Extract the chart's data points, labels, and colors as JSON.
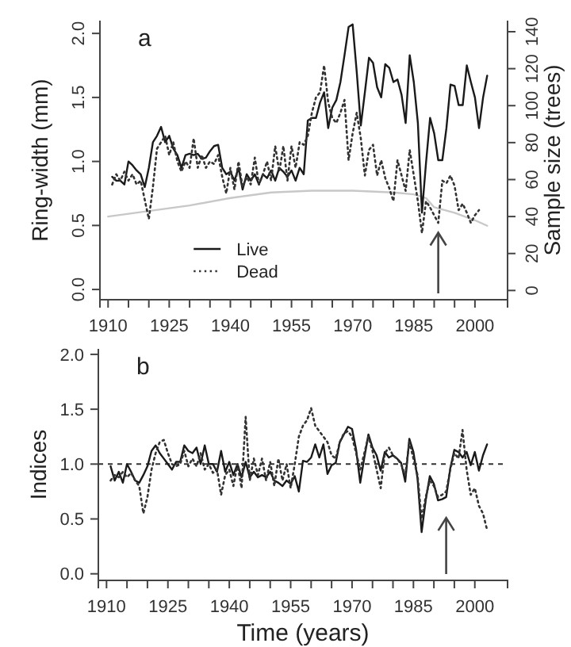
{
  "chart_data": [
    {
      "type": "line",
      "title": "a",
      "ylabel": "Ring-width (mm)",
      "y2label": "Sample size (trees)",
      "x": [
        1911,
        1912,
        1913,
        1914,
        1915,
        1916,
        1917,
        1918,
        1919,
        1920,
        1921,
        1922,
        1923,
        1924,
        1925,
        1926,
        1927,
        1928,
        1929,
        1930,
        1931,
        1932,
        1933,
        1934,
        1935,
        1936,
        1937,
        1938,
        1939,
        1940,
        1941,
        1942,
        1943,
        1944,
        1945,
        1946,
        1947,
        1948,
        1949,
        1950,
        1951,
        1952,
        1953,
        1954,
        1955,
        1956,
        1957,
        1958,
        1959,
        1960,
        1961,
        1962,
        1963,
        1964,
        1965,
        1966,
        1967,
        1968,
        1969,
        1970,
        1971,
        1972,
        1973,
        1974,
        1975,
        1976,
        1977,
        1978,
        1979,
        1980,
        1981,
        1982,
        1983,
        1984,
        1985,
        1986,
        1987,
        1988,
        1989,
        1990,
        1991,
        1992,
        1993,
        1994,
        1995,
        1996,
        1997,
        1998,
        1999,
        2000,
        2001,
        2002,
        2003
      ],
      "series": [
        {
          "name": "Live",
          "color": "#1a1a1a",
          "line_style": "solid",
          "values": [
            0.88,
            0.85,
            0.85,
            0.82,
            1.0,
            0.97,
            0.93,
            0.9,
            0.8,
            0.95,
            1.15,
            1.2,
            1.27,
            1.15,
            1.2,
            1.1,
            1.05,
            0.95,
            1.05,
            1.06,
            1.05,
            1.06,
            1.02,
            1.03,
            1.08,
            1.12,
            1.13,
            0.95,
            0.9,
            0.92,
            0.85,
            0.95,
            0.78,
            0.9,
            0.85,
            0.9,
            0.82,
            0.9,
            0.87,
            0.93,
            0.85,
            0.95,
            0.92,
            0.88,
            0.93,
            0.85,
            0.95,
            0.9,
            1.32,
            1.34,
            1.34,
            1.46,
            1.54,
            1.26,
            1.42,
            1.48,
            1.62,
            1.83,
            2.05,
            2.07,
            1.7,
            1.28,
            1.54,
            1.81,
            1.77,
            1.58,
            1.5,
            1.76,
            1.73,
            1.62,
            1.64,
            1.52,
            1.3,
            1.83,
            1.62,
            1.3,
            0.6,
            0.99,
            1.34,
            1.22,
            1.01,
            1.01,
            1.26,
            1.6,
            1.59,
            1.44,
            1.44,
            1.75,
            1.62,
            1.5,
            1.26,
            1.5,
            1.67
          ]
        },
        {
          "name": "Dead",
          "color": "#333333",
          "line_style": "dotted",
          "values": [
            0.82,
            0.9,
            0.85,
            0.92,
            0.85,
            0.9,
            0.82,
            0.85,
            0.7,
            0.55,
            0.8,
            1.1,
            1.15,
            1.2,
            1.05,
            1.15,
            1.0,
            0.92,
            1.0,
            0.95,
            1.18,
            0.95,
            1.05,
            0.95,
            1.0,
            0.98,
            1.05,
            0.88,
            0.75,
            0.95,
            0.78,
            1.0,
            0.8,
            0.88,
            0.82,
            1.03,
            0.82,
            0.9,
            1.0,
            0.85,
            1.12,
            0.92,
            1.12,
            0.85,
            1.12,
            0.95,
            1.15,
            1.13,
            1.2,
            1.38,
            1.5,
            1.54,
            1.75,
            1.46,
            1.34,
            1.3,
            1.38,
            1.48,
            1.01,
            1.22,
            1.38,
            1.18,
            0.89,
            1.09,
            1.13,
            0.89,
            1.01,
            0.87,
            0.79,
            0.69,
            1.01,
            0.89,
            0.77,
            1.09,
            0.89,
            0.69,
            0.44,
            0.69,
            0.64,
            0.58,
            0.52,
            0.85,
            0.83,
            0.89,
            0.81,
            0.62,
            0.67,
            0.6,
            0.52,
            0.58,
            0.62,
            null,
            null
          ]
        },
        {
          "color": "#c8c8c8",
          "line_style": "solid",
          "axis": "y2",
          "x": [
            1910,
            1920,
            1930,
            1940,
            1950,
            1960,
            1970,
            1980,
            1985,
            1988,
            1990,
            1995,
            2000,
            2003
          ],
          "values": [
            40,
            43,
            46,
            50,
            53,
            54,
            54,
            53,
            52,
            50,
            45,
            42,
            38,
            35
          ]
        }
      ],
      "xlim": [
        1908,
        2008
      ],
      "xticks": [
        1910,
        {
          "value": 1915,
          "label": null
        },
        {
          "value": 1920,
          "label": null
        },
        1925,
        {
          "value": 1930,
          "label": null
        },
        {
          "value": 1935,
          "label": null
        },
        1940,
        {
          "value": 1945,
          "label": null
        },
        {
          "value": 1950,
          "label": null
        },
        1955,
        {
          "value": 1960,
          "label": null
        },
        {
          "value": 1965,
          "label": null
        },
        1970,
        {
          "value": 1975,
          "label": null
        },
        {
          "value": 1980,
          "label": null
        },
        1985,
        {
          "value": 1990,
          "label": null
        },
        {
          "value": 1995,
          "label": null
        },
        2000
      ],
      "ylim": [
        -0.08,
        2.1
      ],
      "yticks": [
        {
          "value": 0,
          "label": "0.0"
        },
        {
          "value": 0.5,
          "label": "0.5"
        },
        {
          "value": 1,
          "label": "1.0"
        },
        {
          "value": 1.5,
          "label": "1.5"
        },
        {
          "value": 2,
          "label": "2.0"
        }
      ],
      "y2lim": [
        -5,
        146
      ],
      "y2ticks": [
        0,
        20,
        40,
        60,
        80,
        100,
        120,
        140
      ],
      "legend": "bottom"
    },
    {
      "type": "line",
      "title": "b",
      "xlabel": "Time (years)",
      "ylabel": "Indices",
      "x": [
        1911,
        1912,
        1913,
        1914,
        1915,
        1916,
        1917,
        1918,
        1919,
        1920,
        1921,
        1922,
        1923,
        1924,
        1925,
        1926,
        1927,
        1928,
        1929,
        1930,
        1931,
        1932,
        1933,
        1934,
        1935,
        1936,
        1937,
        1938,
        1939,
        1940,
        1941,
        1942,
        1943,
        1944,
        1945,
        1946,
        1947,
        1948,
        1949,
        1950,
        1951,
        1952,
        1953,
        1954,
        1955,
        1956,
        1957,
        1958,
        1959,
        1960,
        1961,
        1962,
        1963,
        1964,
        1965,
        1966,
        1967,
        1968,
        1969,
        1970,
        1971,
        1972,
        1973,
        1974,
        1975,
        1976,
        1977,
        1978,
        1979,
        1980,
        1981,
        1982,
        1983,
        1984,
        1985,
        1986,
        1987,
        1988,
        1989,
        1990,
        1991,
        1992,
        1993,
        1994,
        1995,
        1996,
        1997,
        1998,
        1999,
        2000,
        2001,
        2002,
        2003
      ],
      "series": [
        {
          "color": "#1a1a1a",
          "line_style": "solid",
          "values": [
            0.98,
            0.85,
            0.93,
            0.83,
            1.0,
            0.93,
            0.85,
            0.83,
            0.9,
            0.98,
            1.12,
            1.17,
            1.1,
            1.05,
            1.0,
            0.95,
            1.02,
            1.02,
            1.17,
            1.12,
            1.1,
            1.15,
            1.0,
            1.17,
            1.0,
            1.0,
            0.93,
            1.12,
            0.93,
            1.02,
            0.9,
            1.0,
            0.88,
            1.02,
            0.88,
            0.93,
            0.88,
            0.9,
            0.88,
            0.93,
            0.85,
            0.83,
            0.8,
            0.85,
            0.82,
            0.89,
            0.75,
            1.03,
            1.02,
            1.06,
            1.18,
            1.06,
            1.18,
            0.91,
            0.99,
            1.01,
            1.2,
            1.27,
            1.34,
            1.32,
            1.13,
            0.83,
            1.06,
            1.27,
            1.15,
            1.08,
            0.94,
            1.11,
            1.06,
            1.08,
            1.05,
            1.01,
            0.84,
            1.23,
            1.11,
            0.87,
            0.38,
            0.67,
            0.89,
            0.82,
            0.67,
            0.68,
            0.7,
            0.96,
            1.13,
            1.11,
            1.06,
            1.11,
            0.99,
            1.11,
            0.94,
            1.08,
            1.18
          ]
        },
        {
          "color": "#333333",
          "line_style": "dotted",
          "values": [
            0.85,
            0.9,
            0.88,
            0.93,
            0.88,
            0.92,
            0.85,
            0.8,
            0.55,
            0.7,
            0.95,
            1.1,
            1.2,
            1.22,
            1.1,
            1.0,
            0.98,
            1.0,
            1.12,
            0.98,
            1.05,
            0.98,
            1.1,
            0.95,
            1.0,
            0.92,
            0.95,
            0.72,
            0.9,
            0.95,
            0.8,
            1.0,
            0.78,
            1.43,
            0.85,
            1.05,
            0.9,
            1.05,
            0.85,
            1.02,
            0.8,
            1.05,
            0.85,
            1.0,
            0.78,
            1.0,
            1.25,
            1.35,
            1.4,
            1.51,
            1.35,
            1.3,
            1.25,
            1.2,
            1.08,
            1.05,
            1.2,
            1.28,
            1.3,
            1.25,
            1.1,
            0.95,
            1.1,
            1.25,
            1.12,
            0.95,
            0.78,
            1.1,
            1.15,
            1.08,
            1.05,
            1.0,
            0.9,
            1.2,
            1.05,
            0.9,
            0.5,
            0.7,
            0.85,
            0.8,
            0.7,
            0.72,
            0.75,
            0.95,
            1.1,
            1.05,
            1.31,
            0.95,
            0.72,
            0.78,
            0.62,
            0.55,
            0.4
          ]
        }
      ],
      "xlim": [
        1908,
        2008
      ],
      "xticks": [
        1910,
        {
          "value": 1915,
          "label": null
        },
        {
          "value": 1920,
          "label": null
        },
        1925,
        {
          "value": 1930,
          "label": null
        },
        {
          "value": 1935,
          "label": null
        },
        1940,
        {
          "value": 1945,
          "label": null
        },
        {
          "value": 1950,
          "label": null
        },
        1955,
        {
          "value": 1960,
          "label": null
        },
        {
          "value": 1965,
          "label": null
        },
        1970,
        {
          "value": 1975,
          "label": null
        },
        {
          "value": 1980,
          "label": null
        },
        1985,
        {
          "value": 1990,
          "label": null
        },
        {
          "value": 1995,
          "label": null
        },
        2000
      ],
      "ylim": [
        -0.06,
        2.05
      ],
      "yticks": [
        {
          "value": 0,
          "label": "0.0"
        },
        {
          "value": 0.5,
          "label": "0.5"
        },
        {
          "value": 1,
          "label": "1.0"
        },
        {
          "value": 1.5,
          "label": "1.5"
        },
        {
          "value": 2,
          "label": "2.0"
        }
      ],
      "ref_lines": [
        {
          "axis": "y",
          "value": 1,
          "color": "#333333",
          "line_style": "dashed"
        }
      ],
      "legend": false
    }
  ]
}
